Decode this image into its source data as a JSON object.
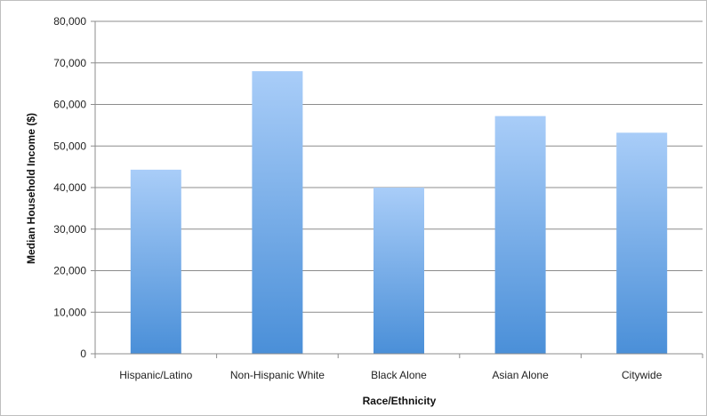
{
  "chart_data": {
    "type": "bar",
    "categories": [
      "Hispanic/Latino",
      "Non-Hispanic White",
      "Black Alone",
      "Asian Alone",
      "Citywide"
    ],
    "values": [
      44300,
      68000,
      40000,
      57200,
      53200
    ],
    "title": "",
    "xlabel": "Race/Ethnicity",
    "ylabel": "Median Household Income ($)",
    "ylim": [
      0,
      80000
    ],
    "yticks": [
      0,
      10000,
      20000,
      30000,
      40000,
      50000,
      60000,
      70000,
      80000
    ],
    "ytick_labels": [
      "0",
      "10,000",
      "20,000",
      "30,000",
      "40,000",
      "50,000",
      "60,000",
      "70,000",
      "80,000"
    ],
    "grid": true,
    "legend": "none",
    "colors": {
      "bar_top": "#a9cdf8",
      "bar_bottom": "#4a8fd8",
      "grid": "#8c8c8c",
      "axis": "#8c8c8c"
    }
  }
}
